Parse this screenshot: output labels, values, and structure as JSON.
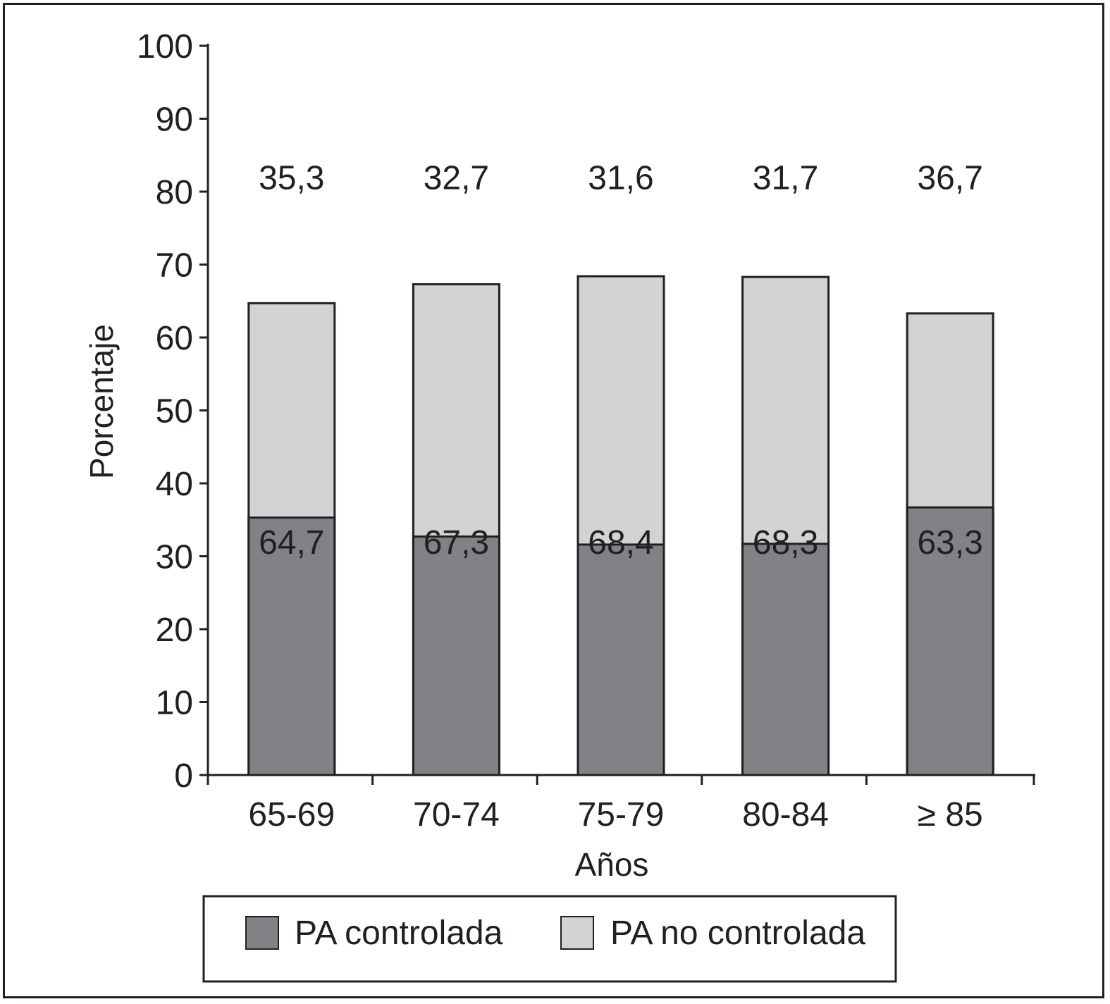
{
  "chart_data": {
    "type": "bar",
    "stacked": true,
    "categories": [
      "65-69",
      "70-74",
      "75-79",
      "80-84",
      "≥ 85"
    ],
    "series": [
      {
        "name": "PA no controlada",
        "values": [
          64.7,
          67.3,
          68.4,
          68.3,
          63.3
        ],
        "labels": [
          "64,7",
          "67,3",
          "68,4",
          "68,3",
          "63,3"
        ],
        "color": "#d1d3d4"
      },
      {
        "name": "PA controlada",
        "values": [
          35.3,
          32.7,
          31.6,
          31.7,
          36.7
        ],
        "labels": [
          "35,3",
          "32,7",
          "31,6",
          "31,7",
          "36,7"
        ],
        "color": "#808285"
      }
    ],
    "xlabel": "Años",
    "ylabel": "Porcentaje",
    "ylim": [
      0,
      100
    ],
    "yticks": [
      0,
      10,
      20,
      30,
      40,
      50,
      60,
      70,
      80,
      90,
      100
    ],
    "grid": false,
    "legend_position": "bottom"
  }
}
